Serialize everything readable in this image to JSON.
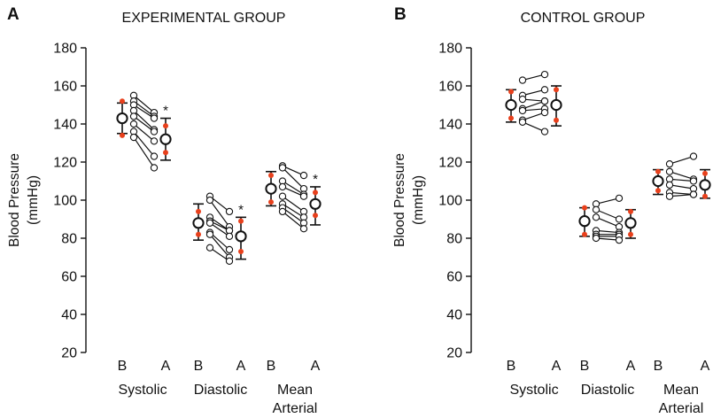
{
  "chart_data": [
    {
      "type": "scatter",
      "panel_label": "A",
      "title": "EXPERIMENTAL GROUP",
      "ylabel_line1": "Blood Pressure",
      "ylabel_line2": "(mmHg)",
      "ylim": [
        20,
        180
      ],
      "yticks": [
        20,
        40,
        60,
        80,
        100,
        120,
        140,
        160,
        180
      ],
      "groups": [
        {
          "label_line1": "Systolic",
          "label_line2": "",
          "conditions": [
            "B",
            "A"
          ],
          "pairs": [
            [
              155,
              146
            ],
            [
              152,
              144
            ],
            [
              150,
              143
            ],
            [
              147,
              137
            ],
            [
              144,
              136
            ],
            [
              140,
              131
            ],
            [
              136,
              123
            ],
            [
              133,
              117
            ]
          ],
          "summary": [
            {
              "mean": 143,
              "sd": 9,
              "error_bar": [
                135,
                151
              ]
            },
            {
              "mean": 132,
              "sd": 7,
              "error_bar": [
                121,
                143
              ]
            }
          ],
          "significance": [
            "",
            "*"
          ]
        },
        {
          "label_line1": "Diastolic",
          "label_line2": "",
          "conditions": [
            "B",
            "A"
          ],
          "pairs": [
            [
              102,
              94
            ],
            [
              100,
              86
            ],
            [
              91,
              84
            ],
            [
              89,
              84
            ],
            [
              88,
              81
            ],
            [
              83,
              74
            ],
            [
              82,
              70
            ],
            [
              75,
              68
            ]
          ],
          "summary": [
            {
              "mean": 88,
              "sd": 6,
              "error_bar": [
                79,
                98
              ]
            },
            {
              "mean": 81,
              "sd": 8,
              "error_bar": [
                69,
                91
              ]
            }
          ],
          "significance": [
            "",
            "*"
          ]
        },
        {
          "label_line1": "Mean",
          "label_line2": "Arterial",
          "conditions": [
            "B",
            "A"
          ],
          "pairs": [
            [
              118,
              113
            ],
            [
              117,
              106
            ],
            [
              110,
              103
            ],
            [
              107,
              102
            ],
            [
              102,
              94
            ],
            [
              98,
              91
            ],
            [
              96,
              88
            ],
            [
              94,
              85
            ]
          ],
          "summary": [
            {
              "mean": 106,
              "sd": 7,
              "error_bar": [
                97,
                115
              ]
            },
            {
              "mean": 98,
              "sd": 6,
              "error_bar": [
                87,
                107
              ]
            }
          ],
          "significance": [
            "",
            "*"
          ]
        }
      ]
    },
    {
      "type": "scatter",
      "panel_label": "B",
      "title": "CONTROL GROUP",
      "ylabel_line1": "Blood Pressure",
      "ylabel_line2": "(mmHg)",
      "ylim": [
        20,
        180
      ],
      "yticks": [
        20,
        40,
        60,
        80,
        100,
        120,
        140,
        160,
        180
      ],
      "groups": [
        {
          "label_line1": "Systolic",
          "label_line2": "",
          "conditions": [
            "B",
            "A"
          ],
          "pairs": [
            [
              163,
              166
            ],
            [
              155,
              158
            ],
            [
              153,
              152
            ],
            [
              148,
              152
            ],
            [
              147,
              148
            ],
            [
              142,
              146
            ],
            [
              141,
              136
            ]
          ],
          "summary": [
            {
              "mean": 150,
              "sd": 7,
              "error_bar": [
                141,
                158
              ]
            },
            {
              "mean": 150,
              "sd": 8,
              "error_bar": [
                139,
                160
              ]
            }
          ],
          "significance": [
            "",
            ""
          ]
        },
        {
          "label_line1": "Diastolic",
          "label_line2": "",
          "conditions": [
            "B",
            "A"
          ],
          "pairs": [
            [
              98,
              101
            ],
            [
              95,
              90
            ],
            [
              91,
              86
            ],
            [
              84,
              83
            ],
            [
              82,
              82
            ],
            [
              81,
              81
            ],
            [
              80,
              79
            ]
          ],
          "summary": [
            {
              "mean": 89,
              "sd": 7,
              "error_bar": [
                81,
                96
              ]
            },
            {
              "mean": 88,
              "sd": 6,
              "error_bar": [
                80,
                95
              ]
            }
          ],
          "significance": [
            "",
            ""
          ]
        },
        {
          "label_line1": "Mean",
          "label_line2": "Arterial",
          "conditions": [
            "B",
            "A"
          ],
          "pairs": [
            [
              119,
              123
            ],
            [
              115,
              111
            ],
            [
              111,
              110
            ],
            [
              108,
              106
            ],
            [
              104,
              103
            ],
            [
              102,
              103
            ]
          ],
          "summary": [
            {
              "mean": 110,
              "sd": 5,
              "error_bar": [
                103,
                116
              ]
            },
            {
              "mean": 108,
              "sd": 6,
              "error_bar": [
                101,
                116
              ]
            }
          ],
          "significance": [
            "",
            ""
          ]
        }
      ]
    }
  ],
  "colors": {
    "axis": "#111111",
    "marker_fill": "#ffffff",
    "sd_marker": "#e8401c"
  }
}
